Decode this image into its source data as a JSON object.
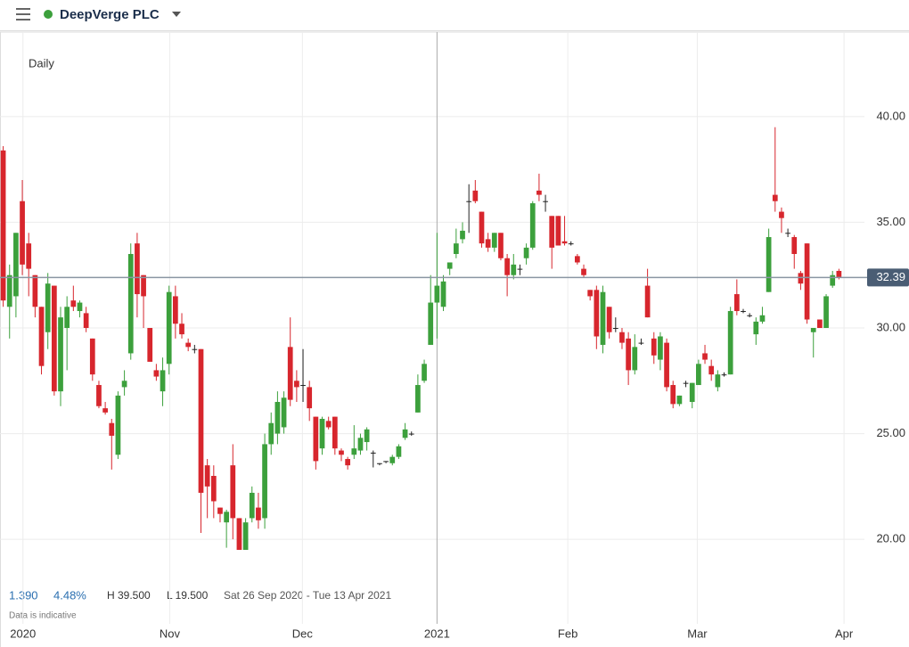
{
  "header": {
    "title": "DeepVerge PLC"
  },
  "chart_data": {
    "type": "candlestick",
    "interval": "Daily",
    "info": {
      "change": "1.390",
      "change_pct": "4.48%",
      "high": "H 39.500",
      "low": "L 19.500",
      "range": "Sat 26 Sep 2020 - Tue 13 Apr 2021",
      "note": "Data is indicative"
    },
    "up_color": "#3ca03c",
    "down_color": "#d7262d",
    "open": [
      38.4,
      31,
      31.5,
      36,
      34,
      32.5,
      31,
      29.8,
      32,
      27,
      30,
      31.3,
      30.8,
      30.7,
      29.5,
      27.3,
      26.2,
      25.5,
      24,
      27.2,
      28.8,
      34,
      32.5,
      30,
      28,
      27,
      28.3,
      31.5,
      30.2,
      29.3,
      29,
      29,
      23.5,
      23,
      21.5,
      20.8,
      23.5,
      21,
      19.5,
      21,
      21.5,
      21,
      24.5,
      25,
      25.3,
      29.1,
      27.5,
      27.3,
      27.2,
      25.8,
      24.3,
      25.6,
      25.8,
      24.2,
      23.8,
      24,
      24.2,
      24.6,
      24.1,
      23.6,
      23.7,
      23.6,
      23.9,
      24.8,
      25,
      26,
      27.5,
      29.2,
      31.2,
      31,
      32.8,
      33.5,
      34.2,
      36,
      36.5,
      35.5,
      34.2,
      33.8,
      34.5,
      33.3,
      32.5,
      32.8,
      33.3,
      33.8,
      36.5,
      36,
      35.3,
      35.3,
      34.1,
      34,
      33.4,
      32.8,
      31.8,
      31.8,
      29.2,
      31,
      30,
      29.8,
      29.5,
      28,
      29.3,
      32,
      29.5,
      28.5,
      29.3,
      27.3,
      26.4,
      27.4,
      26.5,
      27.3,
      28.8,
      28.2,
      27.2,
      27.8,
      27.8,
      31.6,
      30.8,
      30.6,
      29.7,
      30.3,
      31.7,
      36.3,
      35.5,
      34.5,
      34.3,
      32.6,
      34,
      29.8,
      30.4,
      30,
      32,
      32.7
    ],
    "high": [
      38.6,
      33,
      34.5,
      37,
      34.5,
      32.5,
      31,
      32.6,
      32,
      31,
      31.5,
      32,
      31.3,
      31,
      29.5,
      27.5,
      26.5,
      25.7,
      27,
      28,
      34,
      34.5,
      32.5,
      30,
      28.3,
      28.6,
      32,
      32,
      30.7,
      29.5,
      29.2,
      29,
      23.8,
      23.5,
      21.5,
      21.4,
      24.5,
      21,
      21,
      22.5,
      22.2,
      25,
      26,
      27,
      27,
      30.5,
      28,
      29,
      27.5,
      25.8,
      25.8,
      25.8,
      25.8,
      24.3,
      23.9,
      25.4,
      25,
      25.3,
      24.2,
      23.6,
      23.7,
      24,
      24.5,
      25.5,
      25.1,
      27.8,
      28.5,
      32.5,
      34.5,
      32.5,
      33,
      34.7,
      35,
      36.8,
      37,
      35.5,
      34.5,
      34.5,
      34.5,
      33.5,
      33.5,
      33,
      34,
      36,
      37.3,
      36.3,
      35.3,
      35.3,
      35.3,
      34.1,
      33.5,
      33,
      31.8,
      32,
      32,
      31,
      30.5,
      30,
      29.8,
      29.7,
      29.5,
      32.8,
      29.8,
      29.8,
      29.5,
      27.5,
      26.8,
      27.5,
      27.4,
      28.5,
      29.2,
      28.5,
      28,
      27.9,
      31,
      32.3,
      30.9,
      30.7,
      30.5,
      31,
      34.7,
      39.5,
      35.7,
      34.7,
      34.4,
      32.7,
      34,
      30,
      30.4,
      31.6,
      32.7,
      32.8
    ],
    "low": [
      31,
      29.5,
      30.5,
      32.5,
      31.5,
      30.5,
      27.8,
      29,
      26.8,
      26.3,
      28,
      30.8,
      30.5,
      29.8,
      27.5,
      26.2,
      25.9,
      23.3,
      23.8,
      26.8,
      28.5,
      30.5,
      30,
      28.4,
      27.5,
      26.3,
      27.8,
      29.5,
      29.5,
      28.9,
      28.8,
      20.3,
      21,
      21,
      20.8,
      19.6,
      20,
      19.5,
      19.5,
      20.8,
      20.5,
      20.5,
      24,
      24.5,
      25,
      26.3,
      26.5,
      26.5,
      25.6,
      23.3,
      24,
      25.2,
      24,
      23.7,
      23.3,
      23.8,
      24,
      24.2,
      23.4,
      23.5,
      23.6,
      23.5,
      23.8,
      24.7,
      24.9,
      26,
      27.4,
      29.2,
      29.5,
      30.8,
      32.5,
      33.3,
      34,
      34.5,
      35.9,
      33.8,
      33.6,
      33.6,
      33.2,
      31.5,
      32.3,
      32.5,
      33,
      33.7,
      36,
      35.5,
      32.8,
      33.9,
      33.9,
      33.9,
      33,
      32.4,
      31.3,
      29,
      28.8,
      29.5,
      29.8,
      29,
      27.3,
      27.8,
      29.2,
      30.5,
      28.3,
      28,
      27,
      26.2,
      26.3,
      27.2,
      26.2,
      27.3,
      28.3,
      27.5,
      27,
      27.7,
      27.8,
      30.6,
      30.7,
      30.5,
      29.2,
      30.2,
      31.7,
      35.5,
      34.5,
      34.3,
      32.8,
      31.8,
      30.2,
      28.6,
      30,
      30,
      31.9,
      32.3
    ],
    "close": [
      31.3,
      32.5,
      34.5,
      33,
      32.8,
      31,
      28.2,
      32.1,
      27,
      30.5,
      31,
      31,
      31.2,
      30,
      27.8,
      26.3,
      26,
      24.9,
      26.8,
      27.5,
      33.5,
      31.6,
      31.5,
      28.4,
      27.7,
      28,
      31.7,
      30.2,
      29.7,
      29.1,
      29,
      22.2,
      22.5,
      21.8,
      21.2,
      21.3,
      21,
      19.5,
      20.8,
      22.2,
      20.9,
      24.5,
      25.5,
      26.5,
      26.7,
      26.6,
      27.2,
      27.3,
      26.2,
      23.7,
      25.7,
      25.3,
      24.3,
      24,
      23.5,
      24.3,
      24.8,
      25.2,
      24.1,
      23.6,
      23.7,
      23.9,
      24.4,
      25.2,
      25,
      27.3,
      28.3,
      31.2,
      32,
      32.2,
      33.1,
      34,
      34.6,
      36,
      36,
      34,
      33.8,
      34.5,
      33.3,
      32.5,
      33,
      32.8,
      33.8,
      35.9,
      36.3,
      36,
      33.8,
      33.9,
      34,
      34,
      33.1,
      32.5,
      31.5,
      29.6,
      31.7,
      29.8,
      30,
      29.3,
      28,
      29.1,
      29.3,
      30.5,
      28.7,
      29.6,
      27.2,
      26.4,
      26.8,
      27.4,
      27.4,
      28.3,
      28.5,
      27.8,
      27.8,
      27.8,
      30.8,
      30.8,
      30.8,
      30.6,
      30.3,
      30.6,
      34.3,
      36,
      35.2,
      34.5,
      33.5,
      32.1,
      30.4,
      30,
      30,
      31.5,
      32.5,
      32.4
    ],
    "last_price": 32.39,
    "ylim": [
      16,
      44
    ],
    "yticks": [
      {
        "value": 20,
        "label": "20.00"
      },
      {
        "value": 25,
        "label": "25.00"
      },
      {
        "value": 30,
        "label": "30.00"
      },
      {
        "value": 35,
        "label": "35.00"
      },
      {
        "value": 40,
        "label": "40.00"
      }
    ],
    "xlim": [
      -0.5,
      135
    ],
    "xticks": [
      {
        "value": 3.1,
        "label": "2020"
      },
      {
        "value": 26.1,
        "label": "Nov"
      },
      {
        "value": 46.9,
        "label": "Dec"
      },
      {
        "value": 68,
        "label": "2021"
      },
      {
        "value": 88.5,
        "label": "Feb"
      },
      {
        "value": 108.8,
        "label": "Mar"
      },
      {
        "value": 131.8,
        "label": "Apr"
      }
    ],
    "grid": true
  }
}
